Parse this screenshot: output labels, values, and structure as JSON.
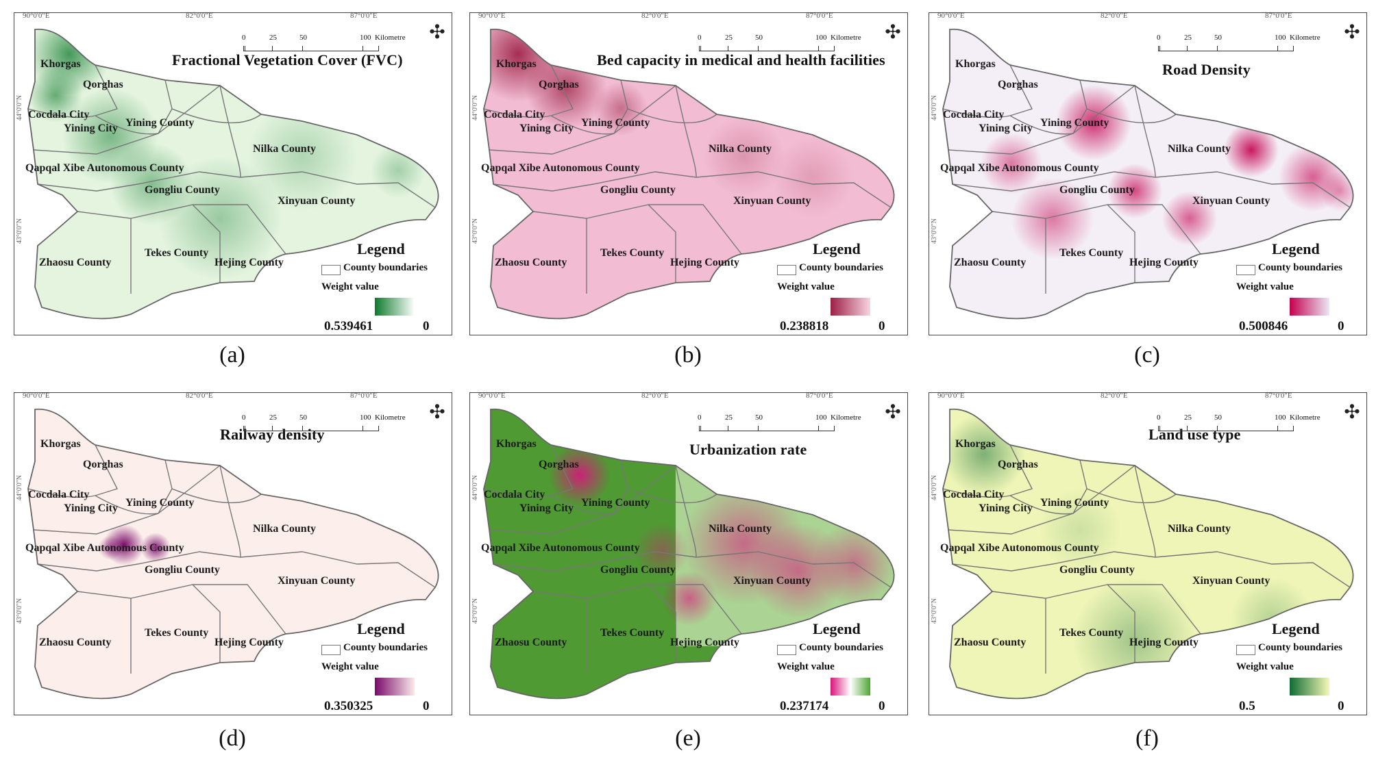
{
  "common": {
    "top_ticks": [
      "90°0'0\"E",
      "82°0'0\"E",
      "87°0'0\"E"
    ],
    "side_ticks": [
      "44°0'0\"N",
      "43°0'0\"N"
    ],
    "scale_labels": [
      "0",
      "25",
      "50",
      "100"
    ],
    "scale_unit": "Kilometre",
    "compass_glyph": "✣",
    "legend_title": "Legend",
    "legend_boundary_label": "County boundaries",
    "weight_label": "Weight value",
    "counties": {
      "khorgas": "Khorgas",
      "qorghas": "Qorghas",
      "cocdala": "Cocdala City",
      "yining_city": "Yining City",
      "yining_county": "Yining County",
      "nilka": "Nilka County",
      "qapqal": "Qapqal Xibe Autonomous County",
      "gongliu": "Gongliu County",
      "xinyuan": "Xinyuan County",
      "zhaosu": "Zhaosu County",
      "tekes": "Tekes County",
      "hejing": "Hejing County"
    }
  },
  "panels": [
    {
      "id": "a",
      "caption": "(a)",
      "title": "Fractional Vegetation Cover (FVC)",
      "max": "0.539461",
      "min": "0",
      "ramp": [
        "#0e7a2c",
        "#ffffff"
      ],
      "base": "#e4f4df"
    },
    {
      "id": "b",
      "caption": "(b)",
      "title": "Bed capacity in medical and health facilities",
      "max": "0.238818",
      "min": "0",
      "ramp": [
        "#9c1f45",
        "#f7d5e2"
      ],
      "base": "#f2bdd2"
    },
    {
      "id": "c",
      "caption": "(c)",
      "title": "Road Density",
      "max": "0.500846",
      "min": "0",
      "ramp": [
        "#c4004e",
        "#ebe7f5"
      ],
      "base": "#f4eef6"
    },
    {
      "id": "d",
      "caption": "(d)",
      "title": "Railway density",
      "max": "0.350325",
      "min": "0",
      "ramp": [
        "#7a0a6a",
        "#fbeaea"
      ],
      "base": "#fcefeb"
    },
    {
      "id": "e",
      "caption": "(e)",
      "title": "Urbanization rate",
      "max": "0.237174",
      "min": "0",
      "ramp": [
        "#d8157c",
        "#ffffff",
        "#4da633"
      ],
      "base": "#4f9a33"
    },
    {
      "id": "f",
      "caption": "(f)",
      "title": "Land use type",
      "max": "0.5",
      "min": "0",
      "ramp": [
        "#0f6b34",
        "#f5f8b7"
      ],
      "base": "#eef5b6"
    }
  ]
}
